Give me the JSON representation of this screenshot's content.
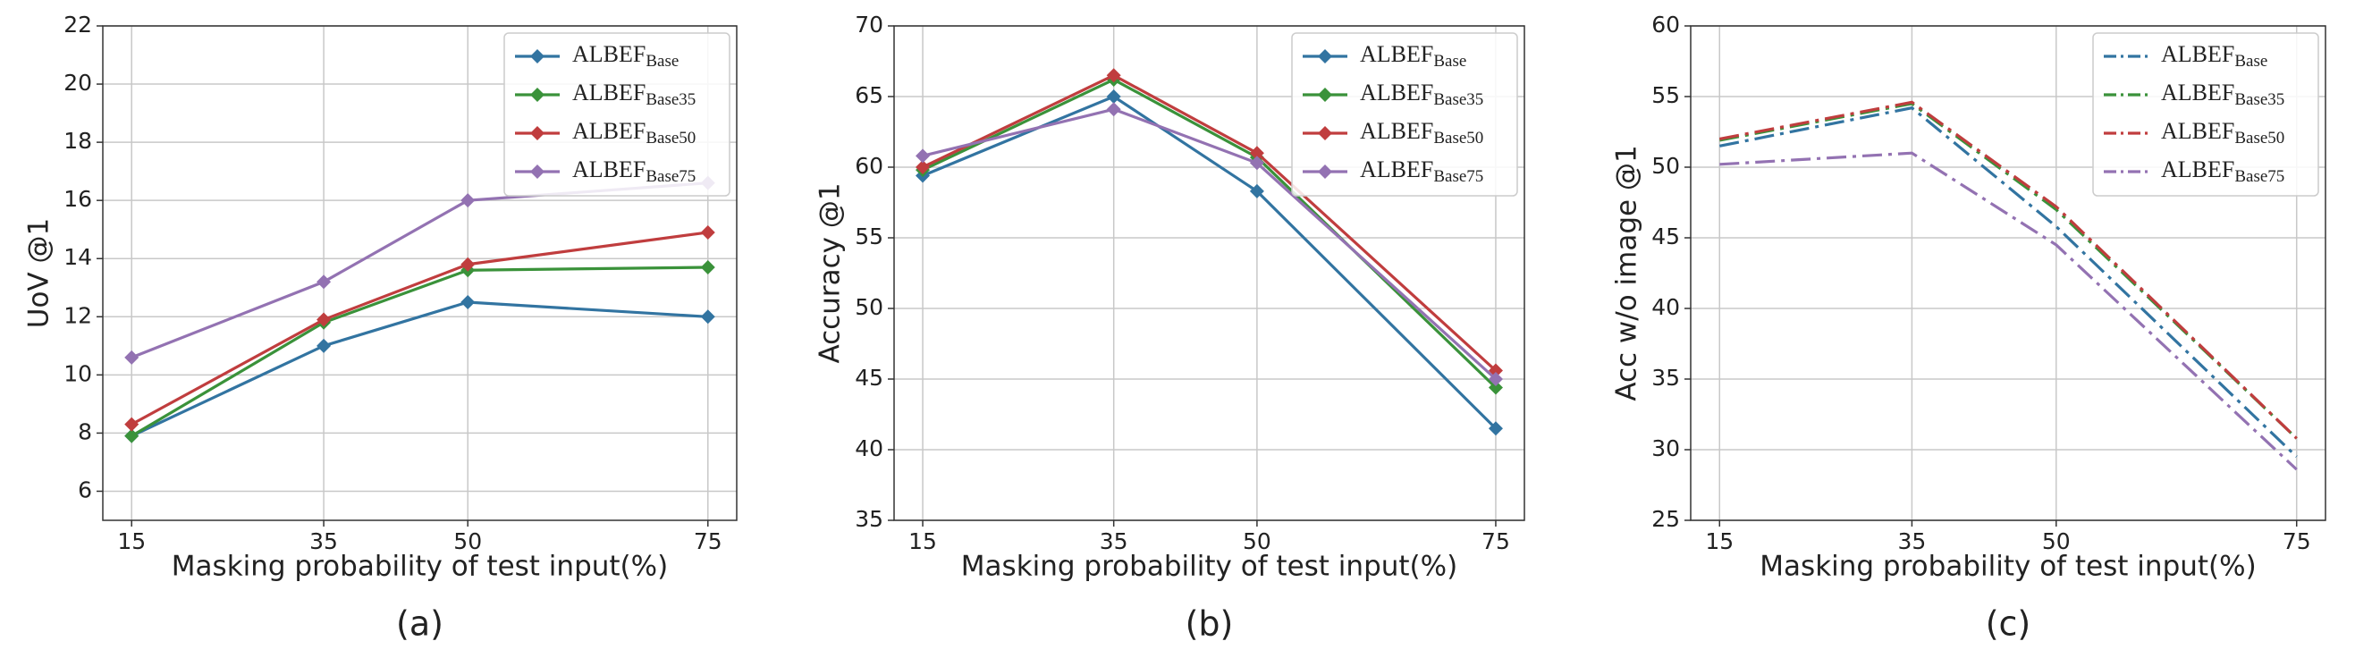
{
  "chart_data": [
    {
      "type": "line",
      "caption": "(a)",
      "xlabel": "Masking probability of test input(%)",
      "ylabel": "UoV @1",
      "x": [
        15,
        35,
        50,
        75
      ],
      "xlim": [
        12,
        78
      ],
      "xticks": [
        15,
        35,
        50,
        75
      ],
      "ylim": [
        5,
        22
      ],
      "yticks": [
        6,
        8,
        10,
        12,
        14,
        16,
        18,
        20,
        22
      ],
      "grid": true,
      "legend": "upper right",
      "linestyle": "solid",
      "markers": true,
      "series": [
        {
          "name": "ALBEF",
          "sub": "Base",
          "color": "#3274a1",
          "values": [
            7.9,
            11.0,
            12.5,
            12.0
          ]
        },
        {
          "name": "ALBEF",
          "sub": "Base35",
          "color": "#3a923a",
          "values": [
            7.9,
            11.8,
            13.6,
            13.7
          ]
        },
        {
          "name": "ALBEF",
          "sub": "Base50",
          "color": "#c03d3e",
          "values": [
            8.3,
            11.9,
            13.8,
            14.9
          ]
        },
        {
          "name": "ALBEF",
          "sub": "Base75",
          "color": "#9372b2",
          "values": [
            10.6,
            13.2,
            16.0,
            16.6
          ]
        }
      ]
    },
    {
      "type": "line",
      "caption": "(b)",
      "xlabel": "Masking probability of test input(%)",
      "ylabel": "Accuracy @1",
      "x": [
        15,
        35,
        50,
        75
      ],
      "xlim": [
        12,
        78
      ],
      "xticks": [
        15,
        35,
        50,
        75
      ],
      "ylim": [
        35,
        70
      ],
      "yticks": [
        35,
        40,
        45,
        50,
        55,
        60,
        65,
        70
      ],
      "grid": true,
      "legend": "upper right",
      "linestyle": "solid",
      "markers": true,
      "series": [
        {
          "name": "ALBEF",
          "sub": "Base",
          "color": "#3274a1",
          "values": [
            59.4,
            65.0,
            58.3,
            41.5
          ]
        },
        {
          "name": "ALBEF",
          "sub": "Base35",
          "color": "#3a923a",
          "values": [
            59.8,
            66.2,
            60.7,
            44.4
          ]
        },
        {
          "name": "ALBEF",
          "sub": "Base50",
          "color": "#c03d3e",
          "values": [
            60.0,
            66.5,
            61.0,
            45.6
          ]
        },
        {
          "name": "ALBEF",
          "sub": "Base75",
          "color": "#9372b2",
          "values": [
            60.8,
            64.1,
            60.3,
            45.0
          ]
        }
      ]
    },
    {
      "type": "line",
      "caption": "(c)",
      "xlabel": "Masking probability of test input(%)",
      "ylabel": "Acc w/o image @1",
      "x": [
        15,
        35,
        50,
        75
      ],
      "xlim": [
        12,
        78
      ],
      "xticks": [
        15,
        35,
        50,
        75
      ],
      "ylim": [
        25,
        60
      ],
      "yticks": [
        25,
        30,
        35,
        40,
        45,
        50,
        55,
        60
      ],
      "grid": true,
      "legend": "upper right",
      "linestyle": "dashdot",
      "markers": false,
      "series": [
        {
          "name": "ALBEF",
          "sub": "Base",
          "color": "#3274a1",
          "values": [
            51.5,
            54.2,
            45.8,
            29.5
          ]
        },
        {
          "name": "ALBEF",
          "sub": "Base35",
          "color": "#3a923a",
          "values": [
            51.9,
            54.5,
            47.0,
            30.8
          ]
        },
        {
          "name": "ALBEF",
          "sub": "Base50",
          "color": "#c03d3e",
          "values": [
            52.0,
            54.6,
            47.2,
            30.8
          ]
        },
        {
          "name": "ALBEF",
          "sub": "Base75",
          "color": "#9372b2",
          "values": [
            50.2,
            51.0,
            44.5,
            28.6
          ]
        }
      ]
    }
  ]
}
